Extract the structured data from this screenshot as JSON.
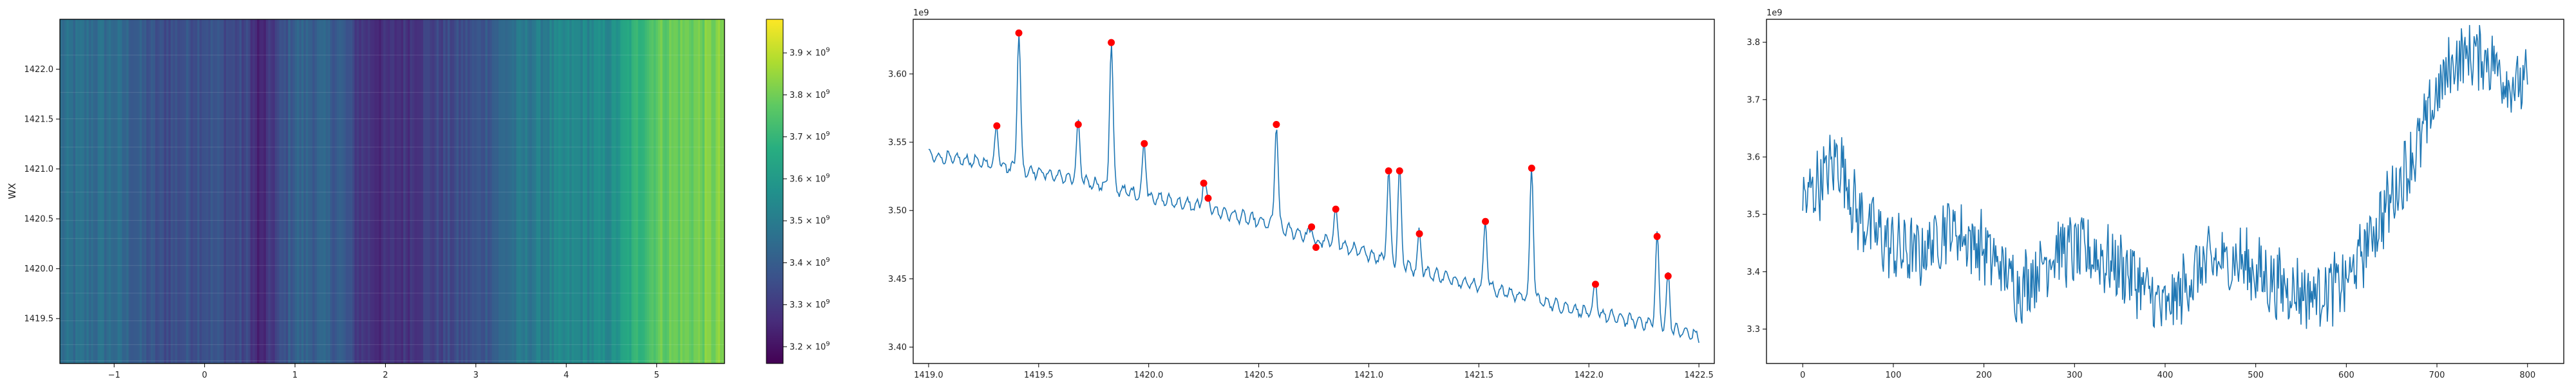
{
  "chart_data": [
    {
      "type": "heatmap",
      "title": "",
      "xlabel": "",
      "ylabel": "WX",
      "xlim": [
        -1.6,
        5.75
      ],
      "ylim": [
        1419.05,
        1422.5
      ],
      "xticks": [
        "−1",
        "0",
        "1",
        "2",
        "3",
        "4",
        "5"
      ],
      "xtick_values": [
        -1,
        0,
        1,
        2,
        3,
        4,
        5
      ],
      "yticks": [
        "1419.5",
        "1420.0",
        "1420.5",
        "1421.0",
        "1421.5",
        "1422.0"
      ],
      "ytick_values": [
        1419.5,
        1420.0,
        1420.5,
        1421.0,
        1421.5,
        1422.0
      ],
      "colormap": "viridis",
      "column_profile": {
        "x": [
          -1.6,
          -1.0,
          -0.5,
          0.0,
          0.5,
          0.6,
          1.0,
          1.5,
          1.7,
          2.0,
          2.5,
          3.0,
          3.5,
          4.0,
          4.5,
          4.8,
          5.0,
          5.5,
          5.75
        ],
        "values": [
          3450000000.0,
          3450000000.0,
          3350000000.0,
          3380000000.0,
          3320000000.0,
          3220000000.0,
          3420000000.0,
          3400000000.0,
          3300000000.0,
          3260000000.0,
          3320000000.0,
          3360000000.0,
          3480000000.0,
          3530000000.0,
          3550000000.0,
          3700000000.0,
          3780000000.0,
          3800000000.0,
          3820000000.0
        ]
      },
      "colorbar": {
        "min": 3160000000.0,
        "max": 3980000000.0,
        "ticks": [
          3200000000.0,
          3300000000.0,
          3400000000.0,
          3500000000.0,
          3600000000.0,
          3700000000.0,
          3800000000.0,
          3900000000.0
        ],
        "tick_mantissas": [
          "3.2",
          "3.3",
          "3.4",
          "3.5",
          "3.6",
          "3.7",
          "3.8",
          "3.9"
        ],
        "tick_base": "× 10",
        "tick_exponent": "9"
      }
    },
    {
      "type": "line",
      "title": "",
      "xlabel": "",
      "ylabel": "",
      "offset_text": "1e9",
      "xlim": [
        1418.93,
        1422.57
      ],
      "ylim": [
        3388000000.0,
        3640000000.0
      ],
      "xticks": [
        "1419.0",
        "1419.5",
        "1420.0",
        "1420.5",
        "1421.0",
        "1421.5",
        "1422.0",
        "1422.5"
      ],
      "xtick_values": [
        1419.0,
        1419.5,
        1420.0,
        1420.5,
        1421.0,
        1421.5,
        1422.0,
        1422.5
      ],
      "yticks": [
        "3.40",
        "3.45",
        "3.50",
        "3.55",
        "3.60"
      ],
      "ytick_values": [
        3400000000.0,
        3450000000.0,
        3500000000.0,
        3550000000.0,
        3600000000.0
      ],
      "x_range": [
        1419.0,
        1422.5
      ],
      "baseline": {
        "x": [
          1419.0,
          1419.25,
          1419.5,
          1419.75,
          1420.0,
          1420.25,
          1420.5,
          1420.75,
          1421.0,
          1421.25,
          1421.5,
          1421.75,
          1422.0,
          1422.25,
          1422.5
        ],
        "y": [
          3540000000.0,
          3535000000.0,
          3528000000.0,
          3520000000.0,
          3510000000.0,
          3502000000.0,
          3492000000.0,
          3480000000.0,
          3468000000.0,
          3455000000.0,
          3445000000.0,
          3435000000.0,
          3425000000.0,
          3418000000.0,
          3408000000.0
        ]
      },
      "peaks": {
        "x": [
          1419.31,
          1419.41,
          1419.68,
          1419.83,
          1419.98,
          1420.25,
          1420.27,
          1420.58,
          1420.74,
          1420.76,
          1420.85,
          1421.09,
          1421.14,
          1421.23,
          1421.53,
          1421.74,
          1422.03,
          1422.31,
          1422.36
        ],
        "y": [
          3562000000.0,
          3630000000.0,
          3563000000.0,
          3623000000.0,
          3549000000.0,
          3520000000.0,
          3509000000.0,
          3563000000.0,
          3488000000.0,
          3473000000.0,
          3501000000.0,
          3529000000.0,
          3529000000.0,
          3483000000.0,
          3492000000.0,
          3531000000.0,
          3446000000.0,
          3481000000.0,
          3452000000.0
        ]
      },
      "series_color": "#1f77b4",
      "marker_color": "#ff0000"
    },
    {
      "type": "line",
      "title": "",
      "xlabel": "",
      "ylabel": "",
      "offset_text": "1e9",
      "xlim": [
        -40,
        840
      ],
      "ylim": [
        3240000000.0,
        3840000000.0
      ],
      "xticks": [
        "0",
        "100",
        "200",
        "300",
        "400",
        "500",
        "600",
        "700",
        "800"
      ],
      "xtick_values": [
        0,
        100,
        200,
        300,
        400,
        500,
        600,
        700,
        800
      ],
      "yticks": [
        "3.3",
        "3.4",
        "3.5",
        "3.6",
        "3.7",
        "3.8"
      ],
      "ytick_values": [
        3300000000.0,
        3400000000.0,
        3500000000.0,
        3600000000.0,
        3700000000.0,
        3800000000.0
      ],
      "n_points": 801,
      "trend": {
        "x": [
          0,
          20,
          40,
          60,
          80,
          100,
          130,
          160,
          200,
          240,
          280,
          320,
          360,
          400,
          440,
          480,
          520,
          560,
          600,
          640,
          660,
          680,
          700,
          720,
          740,
          760,
          780,
          800
        ],
        "y": [
          3520000000.0,
          3560000000.0,
          3600000000.0,
          3500000000.0,
          3470000000.0,
          3440000000.0,
          3430000000.0,
          3480000000.0,
          3440000000.0,
          3370000000.0,
          3440000000.0,
          3430000000.0,
          3400000000.0,
          3330000000.0,
          3410000000.0,
          3420000000.0,
          3380000000.0,
          3360000000.0,
          3380000000.0,
          3500000000.0,
          3560000000.0,
          3620000000.0,
          3710000000.0,
          3770000000.0,
          3780000000.0,
          3770000000.0,
          3730000000.0,
          3720000000.0
        ]
      },
      "series_color": "#1f77b4"
    }
  ]
}
